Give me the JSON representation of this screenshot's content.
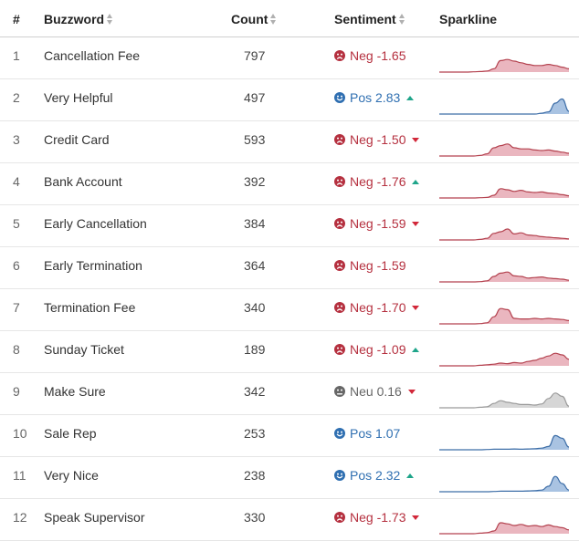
{
  "header": {
    "rank": "#",
    "word": "Buzzword",
    "count": "Count",
    "sentiment": "Sentiment",
    "sparkline": "Sparkline"
  },
  "colors": {
    "negative": "#b5303f",
    "positive": "#2f6fb1",
    "neutral": "#666666",
    "trend_up": "#1fa58a",
    "trend_down": "#d2283a"
  },
  "rows": [
    {
      "rank": "1",
      "word": "Cancellation Fee",
      "count": "797",
      "sentiment": "neg",
      "label": "Neg -1.65",
      "trend": "none",
      "spark": [
        0,
        0,
        0,
        0,
        0,
        0.01,
        0.02,
        0.04,
        0.12,
        0.42,
        0.46,
        0.4,
        0.34,
        0.28,
        0.24,
        0.24,
        0.28,
        0.24,
        0.18,
        0.12
      ]
    },
    {
      "rank": "2",
      "word": "Very Helpful",
      "count": "497",
      "sentiment": "pos",
      "label": "Pos 2.83",
      "trend": "up",
      "spark": [
        0,
        0,
        0,
        0,
        0,
        0,
        0,
        0,
        0,
        0,
        0,
        0,
        0,
        0,
        0,
        0.03,
        0.08,
        0.4,
        0.55,
        0.1
      ]
    },
    {
      "rank": "3",
      "word": "Credit Card",
      "count": "593",
      "sentiment": "neg",
      "label": "Neg -1.50",
      "trend": "down",
      "spark": [
        0,
        0,
        0,
        0,
        0,
        0,
        0.02,
        0.08,
        0.3,
        0.38,
        0.44,
        0.3,
        0.26,
        0.26,
        0.22,
        0.2,
        0.22,
        0.18,
        0.14,
        0.1
      ]
    },
    {
      "rank": "4",
      "word": "Bank Account",
      "count": "392",
      "sentiment": "neg",
      "label": "Neg -1.76",
      "trend": "up",
      "spark": [
        0,
        0,
        0,
        0,
        0,
        0,
        0.01,
        0.02,
        0.1,
        0.34,
        0.3,
        0.24,
        0.28,
        0.22,
        0.2,
        0.22,
        0.18,
        0.16,
        0.12,
        0.08
      ]
    },
    {
      "rank": "5",
      "word": "Early Cancellation",
      "count": "384",
      "sentiment": "neg",
      "label": "Neg -1.59",
      "trend": "down",
      "spark": [
        0,
        0,
        0,
        0,
        0,
        0,
        0.02,
        0.06,
        0.24,
        0.3,
        0.4,
        0.22,
        0.26,
        0.18,
        0.16,
        0.12,
        0.1,
        0.08,
        0.06,
        0.04
      ]
    },
    {
      "rank": "6",
      "word": "Early Termination",
      "count": "364",
      "sentiment": "neg",
      "label": "Neg -1.59",
      "trend": "none",
      "spark": [
        0,
        0,
        0,
        0,
        0,
        0,
        0.01,
        0.04,
        0.2,
        0.32,
        0.36,
        0.22,
        0.2,
        0.14,
        0.16,
        0.18,
        0.14,
        0.12,
        0.1,
        0.06
      ]
    },
    {
      "rank": "7",
      "word": "Termination Fee",
      "count": "340",
      "sentiment": "neg",
      "label": "Neg -1.70",
      "trend": "down",
      "spark": [
        0,
        0,
        0,
        0,
        0,
        0,
        0.01,
        0.04,
        0.26,
        0.56,
        0.52,
        0.2,
        0.18,
        0.18,
        0.2,
        0.18,
        0.2,
        0.18,
        0.16,
        0.12
      ]
    },
    {
      "rank": "8",
      "word": "Sunday Ticket",
      "count": "189",
      "sentiment": "neg",
      "label": "Neg -1.09",
      "trend": "up",
      "spark": [
        0,
        0,
        0,
        0,
        0,
        0,
        0.02,
        0.04,
        0.06,
        0.1,
        0.08,
        0.12,
        0.1,
        0.16,
        0.2,
        0.28,
        0.36,
        0.46,
        0.4,
        0.24
      ]
    },
    {
      "rank": "9",
      "word": "Make Sure",
      "count": "342",
      "sentiment": "neu",
      "label": "Neu 0.16",
      "trend": "down",
      "spark": [
        0,
        0,
        0,
        0,
        0,
        0,
        0.02,
        0.04,
        0.16,
        0.26,
        0.2,
        0.16,
        0.12,
        0.12,
        0.1,
        0.14,
        0.34,
        0.54,
        0.42,
        0.06
      ]
    },
    {
      "rank": "10",
      "word": "Sale Rep",
      "count": "253",
      "sentiment": "pos",
      "label": "Pos 1.07",
      "trend": "none",
      "spark": [
        0,
        0,
        0,
        0,
        0,
        0,
        0,
        0.01,
        0.02,
        0.02,
        0.02,
        0.03,
        0.02,
        0.03,
        0.04,
        0.06,
        0.12,
        0.52,
        0.42,
        0.1
      ]
    },
    {
      "rank": "11",
      "word": "Very Nice",
      "count": "238",
      "sentiment": "pos",
      "label": "Pos 2.32",
      "trend": "up",
      "spark": [
        0,
        0,
        0,
        0,
        0,
        0,
        0,
        0,
        0.01,
        0.02,
        0.02,
        0.02,
        0.02,
        0.03,
        0.04,
        0.06,
        0.2,
        0.56,
        0.3,
        0.06
      ]
    },
    {
      "rank": "12",
      "word": "Speak Supervisor",
      "count": "330",
      "sentiment": "neg",
      "label": "Neg -1.73",
      "trend": "down",
      "spark": [
        0,
        0,
        0,
        0,
        0,
        0,
        0.02,
        0.04,
        0.1,
        0.4,
        0.36,
        0.3,
        0.34,
        0.28,
        0.3,
        0.26,
        0.32,
        0.26,
        0.22,
        0.14
      ]
    }
  ]
}
